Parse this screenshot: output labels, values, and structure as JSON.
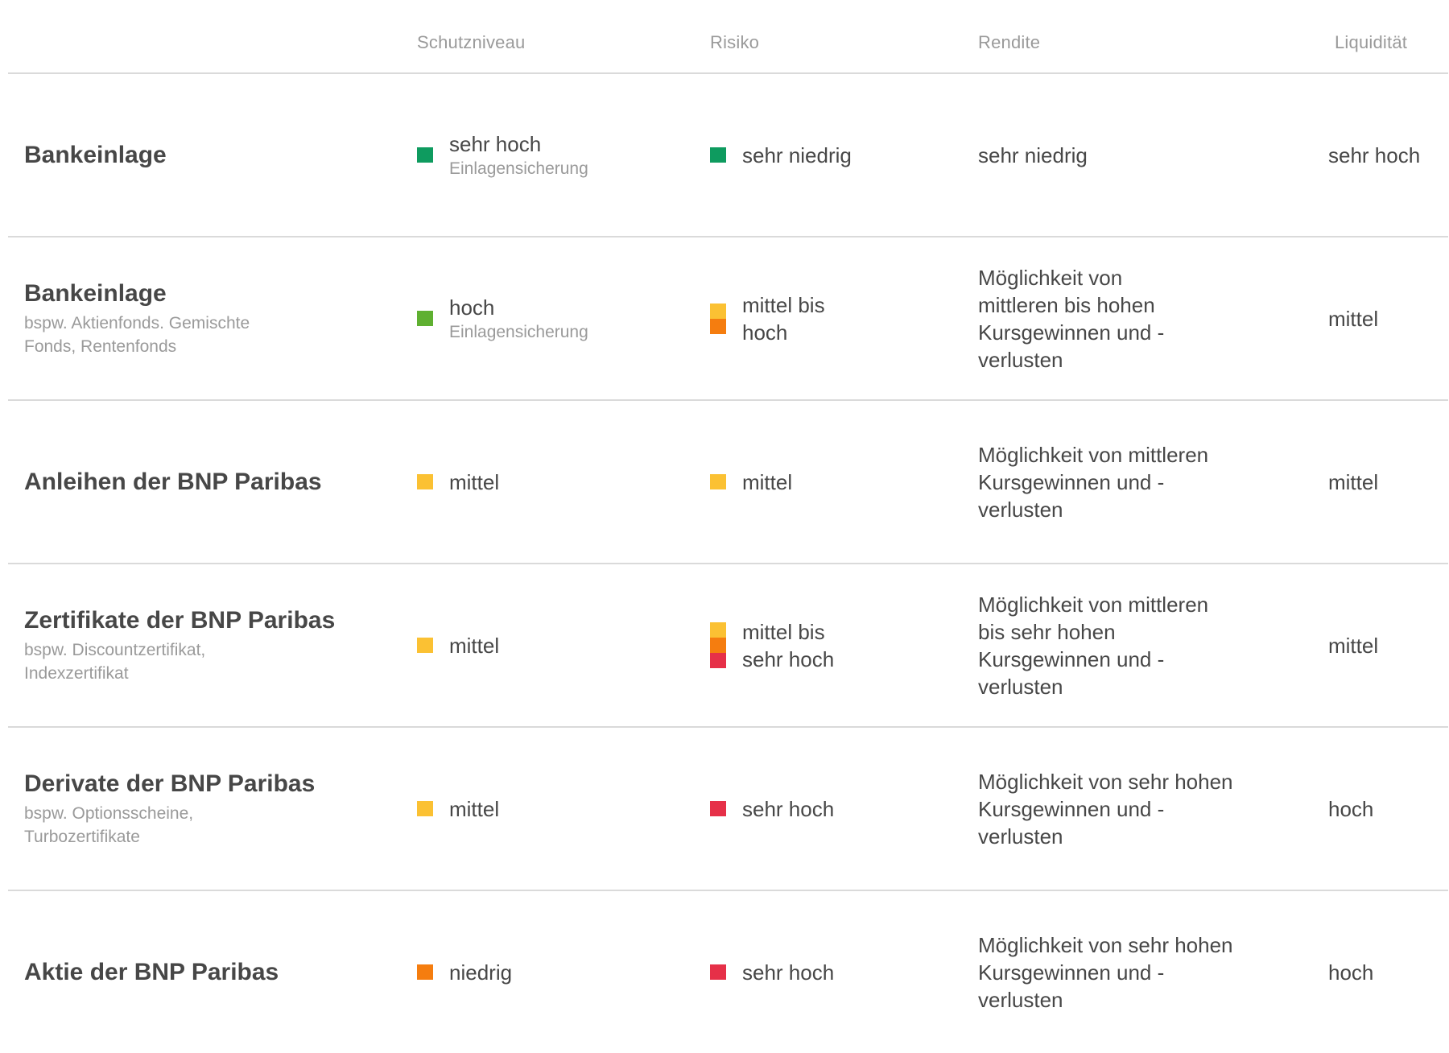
{
  "colors": {
    "dark_green": "#0e9b5f",
    "green": "#5fb031",
    "yellow": "#fbc133",
    "orange": "#f57d0f",
    "red": "#e63048"
  },
  "header": {
    "schutzniveau": "Schutzniveau",
    "risiko": "Risiko",
    "rendite": "Rendite",
    "liquiditaet": "Liquidität"
  },
  "rows": [
    {
      "title": "Bankeinlage",
      "subtitle": "",
      "schutz_label": "sehr hoch",
      "schutz_sub": "Einlagensicherung",
      "risiko_label": "sehr niedrig",
      "rendite_label": "sehr niedrig",
      "liquiditaet_label": "sehr hoch"
    },
    {
      "title": "Bankeinlage",
      "subtitle": "bspw. Aktienfonds. Gemischte Fonds, Rentenfonds",
      "schutz_label": "hoch",
      "schutz_sub": "Einlagensicherung",
      "risiko_label": "mittel bis hoch",
      "rendite_label": "Möglichkeit von mittleren bis hohen Kursgewinnen und -verlusten",
      "liquiditaet_label": "mittel"
    },
    {
      "title": "Anleihen der BNP Paribas",
      "subtitle": "",
      "schutz_label": "mittel",
      "schutz_sub": "",
      "risiko_label": "mittel",
      "rendite_label": "Möglichkeit von mittleren Kursgewinnen und -verlusten",
      "liquiditaet_label": "mittel"
    },
    {
      "title": "Zertifikate der BNP Paribas",
      "subtitle": "bspw. Discountzertifikat, Indexzertifikat",
      "schutz_label": "mittel",
      "schutz_sub": "",
      "risiko_label": "mittel bis sehr hoch",
      "rendite_label": "Möglichkeit von mittleren bis sehr hohen Kursgewinnen und -verlusten",
      "liquiditaet_label": "mittel"
    },
    {
      "title": "Derivate der BNP Paribas",
      "subtitle": "bspw. Optionsscheine, Turbozertifikate",
      "schutz_label": "mittel",
      "schutz_sub": "",
      "risiko_label": "sehr hoch",
      "rendite_label": "Möglichkeit von sehr hohen Kursgewinnen und -verlusten",
      "liquiditaet_label": "hoch"
    },
    {
      "title": "Aktie der BNP Paribas",
      "subtitle": "",
      "schutz_label": "niedrig",
      "schutz_sub": "",
      "risiko_label": "sehr hoch",
      "rendite_label": "Möglichkeit von sehr hohen Kursgewinnen und -verlusten",
      "liquiditaet_label": "hoch"
    }
  ]
}
